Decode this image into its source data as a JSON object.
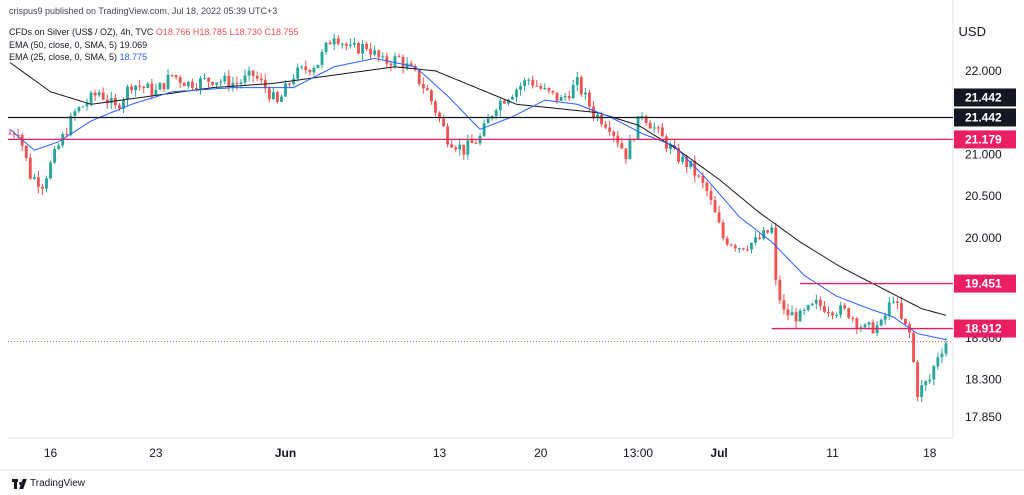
{
  "header": {
    "publisher": "crispus9 published on TradingView.com, Jul 18, 2022 05:39 UTC+3",
    "symbol_prefix": "CFDs on Silver (US$ / OZ), 4h, TVC",
    "ohlc": "O18.766 H18.785 L18.730 C18.755",
    "ema50_label": "EMA (50, close, 0, SMA, 5)",
    "ema50_value": "19.069",
    "ema25_label": "EMA (25, close, 0, SMA, 5)",
    "ema25_value": "18.775"
  },
  "currency": "USD",
  "footer": {
    "brand": "TradingView"
  },
  "colors": {
    "up": "#26a69a",
    "down": "#ef5350",
    "ema50": "#131722",
    "ema25": "#2962ff",
    "resistance_black": "#131722",
    "level_red": "#e91e63",
    "grid_text": "#131722"
  },
  "chart_data": {
    "type": "candlestick",
    "symbol": "CFDs on Silver (US$ / OZ)",
    "timeframe": "4h",
    "ylim": [
      17.6,
      22.85
    ],
    "y_ticks": [
      22.0,
      21.5,
      21.0,
      20.5,
      20.0,
      19.5,
      18.8,
      18.3,
      17.85
    ],
    "y_tick_labels": [
      "22.000",
      "",
      "21.000",
      "20.500",
      "20.000",
      "",
      "18.800",
      "18.300",
      "17.850"
    ],
    "x_tick_labels": [
      "16",
      "23",
      "Jun",
      "13",
      "20",
      "13:00",
      "Jul",
      "11",
      "18"
    ],
    "bars": 232,
    "x_tick_bar_index": [
      10,
      36,
      68,
      106,
      131,
      155,
      175,
      203,
      227
    ],
    "bold_tick_labels": [
      "Jun",
      "Jul"
    ],
    "close_path": [
      [
        0,
        21.25
      ],
      [
        2,
        21.3
      ],
      [
        5,
        20.75
      ],
      [
        8,
        20.65
      ],
      [
        12,
        21.1
      ],
      [
        16,
        21.5
      ],
      [
        22,
        21.75
      ],
      [
        26,
        21.55
      ],
      [
        30,
        21.85
      ],
      [
        36,
        21.75
      ],
      [
        40,
        21.95
      ],
      [
        44,
        21.85
      ],
      [
        50,
        21.9
      ],
      [
        56,
        21.85
      ],
      [
        60,
        21.95
      ],
      [
        63,
        21.8
      ],
      [
        66,
        21.6
      ],
      [
        70,
        21.95
      ],
      [
        76,
        22.1
      ],
      [
        80,
        22.45
      ],
      [
        84,
        22.25
      ],
      [
        88,
        22.3
      ],
      [
        92,
        22.1
      ],
      [
        96,
        22.15
      ],
      [
        100,
        21.95
      ],
      [
        103,
        21.75
      ],
      [
        108,
        21.2
      ],
      [
        112,
        21.05
      ],
      [
        116,
        21.2
      ],
      [
        120,
        21.6
      ],
      [
        124,
        21.75
      ],
      [
        128,
        21.9
      ],
      [
        132,
        21.75
      ],
      [
        136,
        21.65
      ],
      [
        140,
        21.85
      ],
      [
        144,
        21.5
      ],
      [
        148,
        21.35
      ],
      [
        152,
        21.0
      ],
      [
        156,
        21.5
      ],
      [
        160,
        21.25
      ],
      [
        164,
        21.0
      ],
      [
        168,
        20.85
      ],
      [
        172,
        20.55
      ],
      [
        176,
        20.0
      ],
      [
        180,
        19.9
      ],
      [
        184,
        19.95
      ],
      [
        188,
        20.1
      ],
      [
        189,
        19.45
      ],
      [
        191,
        19.1
      ],
      [
        195,
        19.05
      ],
      [
        199,
        19.2
      ],
      [
        203,
        19.15
      ],
      [
        207,
        19.1
      ],
      [
        211,
        18.9
      ],
      [
        215,
        18.95
      ],
      [
        218,
        19.3
      ],
      [
        220,
        19.0
      ],
      [
        222,
        18.85
      ],
      [
        224,
        18.15
      ],
      [
        227,
        18.3
      ],
      [
        229,
        18.6
      ],
      [
        231,
        18.75
      ]
    ],
    "ema25_path": [
      [
        0,
        21.3
      ],
      [
        6,
        21.05
      ],
      [
        12,
        21.15
      ],
      [
        20,
        21.4
      ],
      [
        30,
        21.6
      ],
      [
        40,
        21.75
      ],
      [
        55,
        21.8
      ],
      [
        70,
        21.8
      ],
      [
        80,
        22.05
      ],
      [
        90,
        22.15
      ],
      [
        100,
        22.05
      ],
      [
        108,
        21.7
      ],
      [
        116,
        21.3
      ],
      [
        124,
        21.45
      ],
      [
        132,
        21.65
      ],
      [
        140,
        21.6
      ],
      [
        148,
        21.45
      ],
      [
        156,
        21.25
      ],
      [
        164,
        21.1
      ],
      [
        172,
        20.7
      ],
      [
        180,
        20.25
      ],
      [
        188,
        19.95
      ],
      [
        196,
        19.55
      ],
      [
        204,
        19.3
      ],
      [
        212,
        19.15
      ],
      [
        218,
        19.05
      ],
      [
        224,
        18.85
      ],
      [
        231,
        18.78
      ]
    ],
    "ema50_path": [
      [
        0,
        22.1
      ],
      [
        10,
        21.75
      ],
      [
        20,
        21.6
      ],
      [
        35,
        21.7
      ],
      [
        50,
        21.8
      ],
      [
        65,
        21.85
      ],
      [
        80,
        21.95
      ],
      [
        95,
        22.05
      ],
      [
        105,
        22.0
      ],
      [
        115,
        21.8
      ],
      [
        125,
        21.6
      ],
      [
        135,
        21.55
      ],
      [
        145,
        21.5
      ],
      [
        155,
        21.35
      ],
      [
        165,
        21.05
      ],
      [
        175,
        20.7
      ],
      [
        185,
        20.3
      ],
      [
        195,
        19.95
      ],
      [
        205,
        19.65
      ],
      [
        215,
        19.4
      ],
      [
        225,
        19.15
      ],
      [
        231,
        19.07
      ]
    ],
    "horizontal_lines": [
      {
        "value": 21.442,
        "label": "21.442",
        "color": "#131722",
        "style": "solid"
      },
      {
        "value": 21.179,
        "label": "21.179",
        "color": "#e91e63",
        "style": "solid"
      },
      {
        "value": 18.755,
        "color": "#ef5350",
        "style": "dotted"
      }
    ],
    "segments": [
      {
        "value": 19.451,
        "label": "19.451",
        "from_bar": 195,
        "color": "#e91e63"
      },
      {
        "value": 18.912,
        "label": "18.912",
        "from_bar": 188,
        "color": "#e91e63"
      }
    ],
    "price_labels": [
      {
        "value": 21.442,
        "text": "21.442",
        "bg": "#131722",
        "fg": "#ffffff"
      },
      {
        "value": 21.442,
        "text": "21.442",
        "bg": "#131722",
        "fg": "#ffffff",
        "offset": -1
      },
      {
        "value": 21.179,
        "text": "21.179",
        "bg": "#e91e63",
        "fg": "#ffffff"
      },
      {
        "value": 19.451,
        "text": "19.451",
        "bg": "#e91e63",
        "fg": "#ffffff"
      },
      {
        "value": 18.912,
        "text": "18.912",
        "bg": "#e91e63",
        "fg": "#ffffff"
      }
    ]
  }
}
